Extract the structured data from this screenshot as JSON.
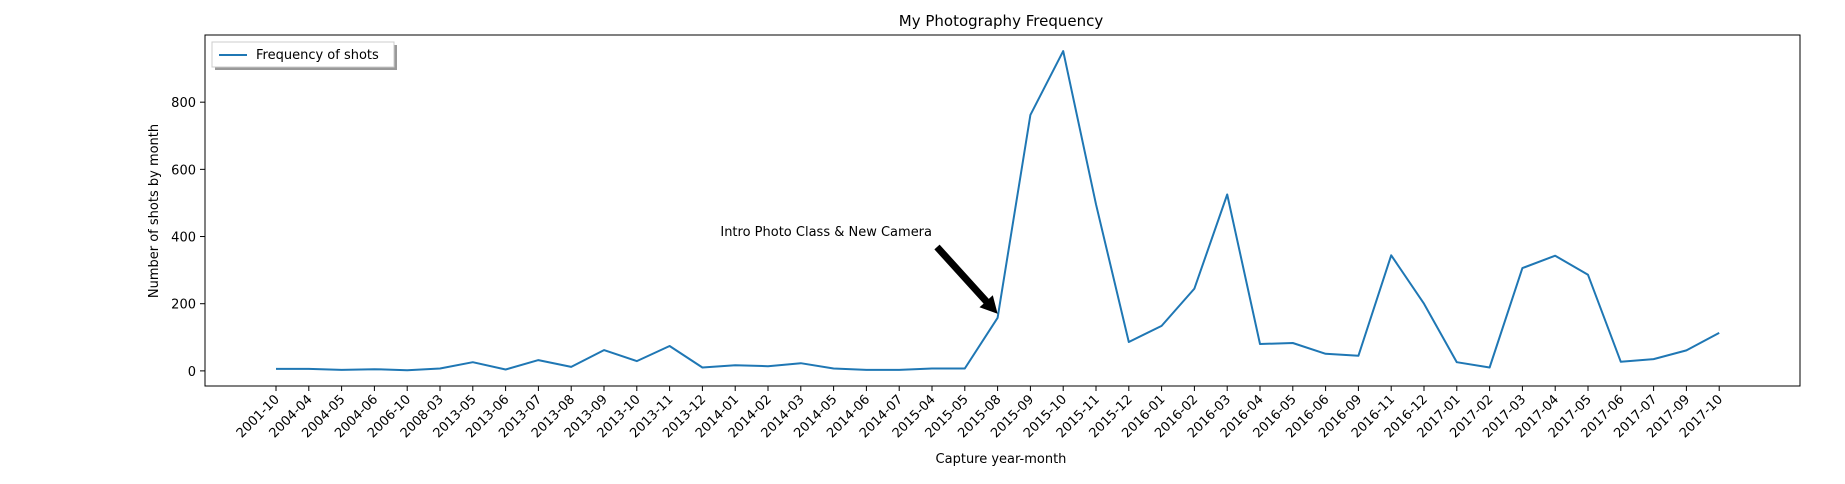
{
  "chart_data": {
    "type": "line",
    "title": "My Photography Frequency",
    "xlabel": "Capture year-month",
    "ylabel": "Number of shots by month",
    "ylim": [
      -45,
      1000
    ],
    "yticks": [
      0,
      200,
      400,
      600,
      800
    ],
    "grid": false,
    "legend_position": "top-left",
    "categories": [
      "2001-10",
      "2004-04",
      "2004-05",
      "2004-06",
      "2006-10",
      "2008-03",
      "2013-05",
      "2013-06",
      "2013-07",
      "2013-08",
      "2013-09",
      "2013-10",
      "2013-11",
      "2013-12",
      "2014-01",
      "2014-02",
      "2014-03",
      "2014-05",
      "2014-06",
      "2014-07",
      "2015-04",
      "2015-05",
      "2015-08",
      "2015-09",
      "2015-10",
      "2015-11",
      "2015-12",
      "2016-01",
      "2016-02",
      "2016-03",
      "2016-04",
      "2016-05",
      "2016-06",
      "2016-09",
      "2016-11",
      "2016-12",
      "2017-01",
      "2017-02",
      "2017-03",
      "2017-04",
      "2017-05",
      "2017-06",
      "2017-07",
      "2017-09",
      "2017-10"
    ],
    "series": [
      {
        "name": "Frequency of shots",
        "color": "#1f77b4",
        "values": [
          6,
          6,
          3,
          5,
          2,
          7,
          26,
          4,
          32,
          12,
          62,
          29,
          74,
          10,
          17,
          14,
          23,
          7,
          3,
          3,
          7,
          7,
          158,
          762,
          952,
          496,
          86,
          134,
          245,
          525,
          80,
          83,
          51,
          45,
          344,
          200,
          26,
          10,
          306,
          343,
          286,
          27,
          35,
          61,
          113
        ]
      }
    ],
    "annotation": {
      "text": "Intro Photo Class & New Camera",
      "target_category": "2015-08",
      "target_value": 158
    }
  }
}
